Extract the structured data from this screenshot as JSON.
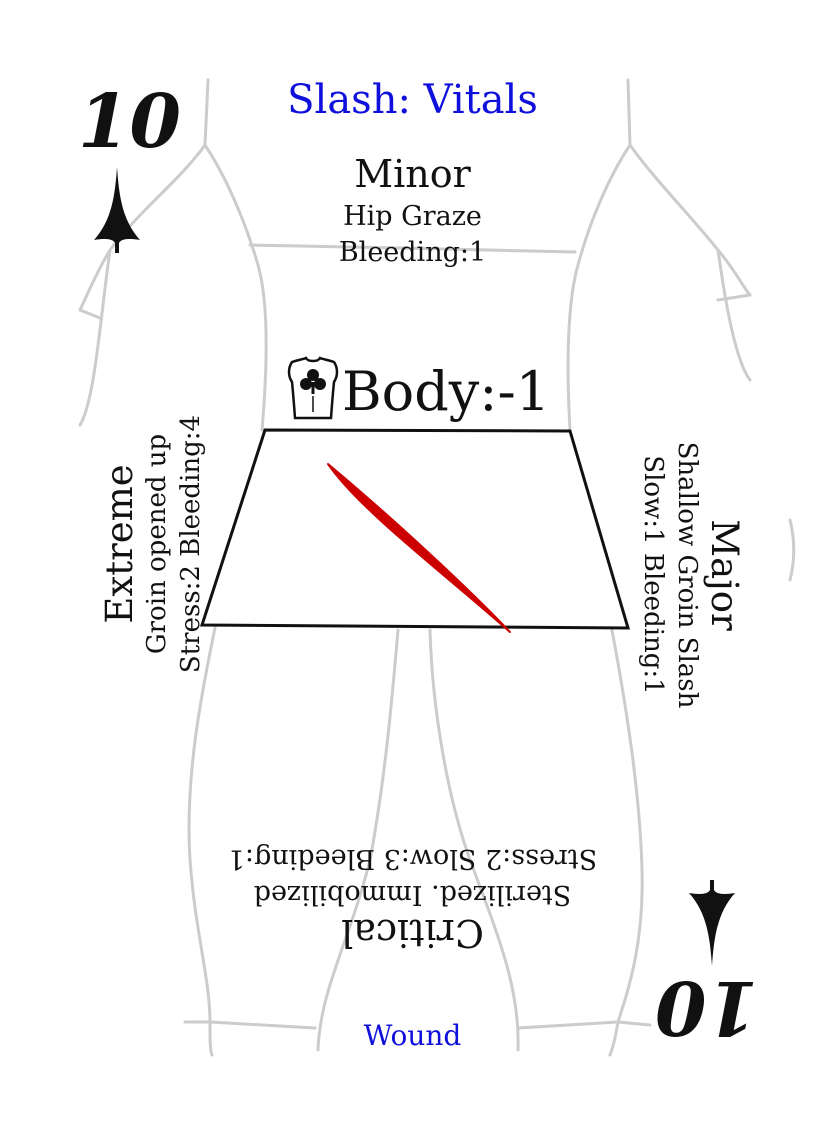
{
  "card": {
    "rank": "10",
    "title": "Slash: Vitals",
    "footer": "Wound",
    "stat_label": "Body:-1",
    "colors": {
      "title": "#1010dd",
      "wound": "#cc0000",
      "outline": "#cccccc",
      "ink": "#111111"
    }
  },
  "suit_icon": "spade-pip-icon",
  "stat_icon": "torso-club-icon",
  "outcomes": {
    "minor": {
      "label": "Minor",
      "effect": "Hip Graze",
      "stats": "Bleeding:1"
    },
    "major": {
      "label": "Major",
      "effect": "Shallow Groin Slash",
      "stats": "Slow:1 Bleeding:1"
    },
    "extreme": {
      "label": "Extreme",
      "effect": "Groin opened up",
      "stats": "Stress:2 Bleeding:4"
    },
    "critical": {
      "label": "Critical",
      "effect": "Sterilized. Immobilized",
      "stats": "Stress:2 Slow:3 Bleeding:1"
    }
  }
}
